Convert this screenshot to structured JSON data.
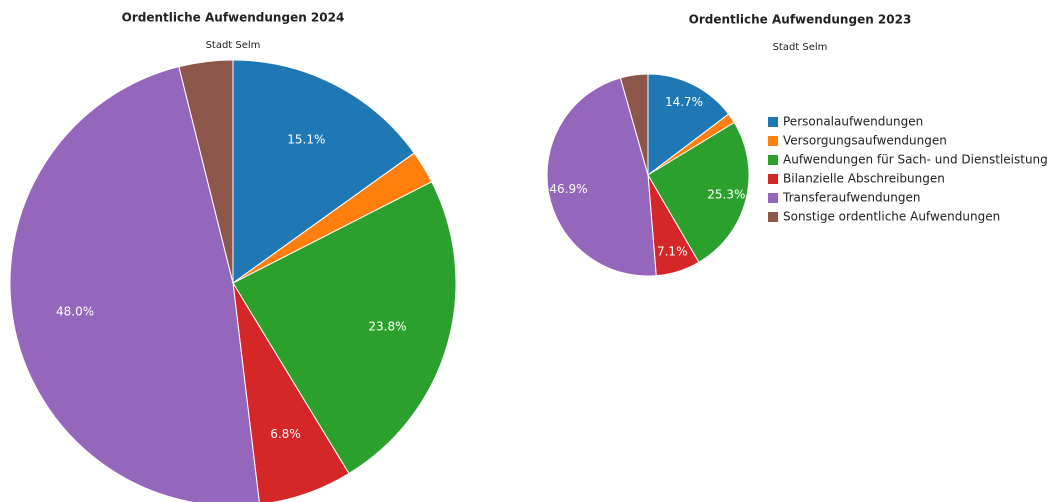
{
  "chart_data": [
    {
      "type": "pie",
      "title": "Ordentliche Aufwendungen 2024",
      "subtitle": "Stadt Selm",
      "values": [
        15.1,
        2.4,
        23.8,
        6.8,
        48.0,
        3.9
      ],
      "value_labels": [
        "15.1%",
        null,
        "23.8%",
        "6.8%",
        "48.0%",
        null
      ]
    },
    {
      "type": "pie",
      "title": "Ordentliche Aufwendungen 2023",
      "subtitle": "Stadt Selm",
      "categories": [
        "Personalaufwendungen",
        "Versorgungsaufwendungen",
        "Aufwendungen für Sach- und Dienstleistungen",
        "Bilanzielle Abschreibungen",
        "Transferaufwendungen",
        "Sonstige ordentliche Aufwendungen"
      ],
      "colors": [
        "#1f77b4",
        "#ff7f0e",
        "#2ca02c",
        "#d62728",
        "#9467bd",
        "#8c564b"
      ],
      "values": [
        14.7,
        1.6,
        25.3,
        7.1,
        46.9,
        4.4
      ],
      "value_labels": [
        "14.7%",
        null,
        "25.3%",
        "7.1%",
        "46.9%",
        null
      ],
      "legend": "right"
    }
  ]
}
